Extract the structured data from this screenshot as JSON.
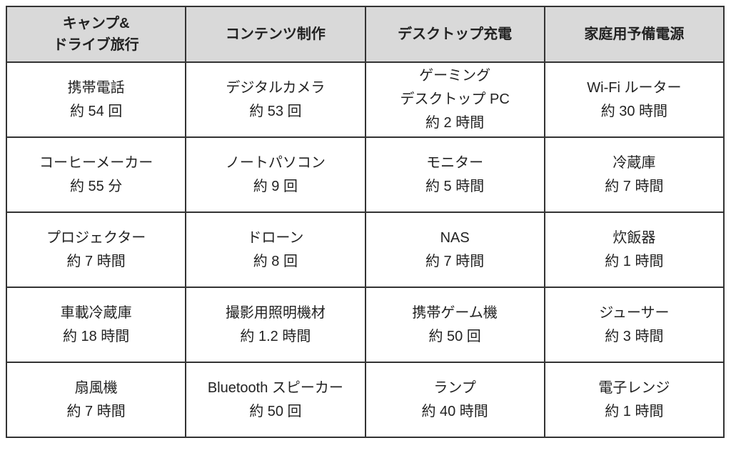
{
  "headers": [
    [
      "キャンプ&",
      "ドライブ旅行"
    ],
    [
      "コンテンツ制作"
    ],
    [
      "デスクトップ充電"
    ],
    [
      "家庭用予備電源"
    ]
  ],
  "rows": [
    [
      [
        "携帯電話",
        "約 54 回"
      ],
      [
        "デジタルカメラ",
        "約 53 回"
      ],
      [
        "ゲーミング",
        "デスクトップ PC",
        "約 2 時間"
      ],
      [
        "Wi-Fi ルーター",
        "約 30 時間"
      ]
    ],
    [
      [
        "コーヒーメーカー",
        "約 55 分"
      ],
      [
        "ノートパソコン",
        "約 9 回"
      ],
      [
        "モニター",
        "約 5 時間"
      ],
      [
        "冷蔵庫",
        "約 7 時間"
      ]
    ],
    [
      [
        "プロジェクター",
        "約 7 時間"
      ],
      [
        "ドローン",
        "約 8 回"
      ],
      [
        "NAS",
        "約 7 時間"
      ],
      [
        "炊飯器",
        "約 1 時間"
      ]
    ],
    [
      [
        "車載冷蔵庫",
        "約 18 時間"
      ],
      [
        "撮影用照明機材",
        "約 1.2 時間"
      ],
      [
        "携帯ゲーム機",
        "約 50 回"
      ],
      [
        "ジューサー",
        "約 3 時間"
      ]
    ],
    [
      [
        "扇風機",
        "約 7 時間"
      ],
      [
        "Bluetooth スピーカー",
        "約 50 回"
      ],
      [
        "ランプ",
        "約 40 時間"
      ],
      [
        "電子レンジ",
        "約 1 時間"
      ]
    ]
  ],
  "colors": {
    "header_bg": "#d9d9d9",
    "border": "#333333"
  }
}
